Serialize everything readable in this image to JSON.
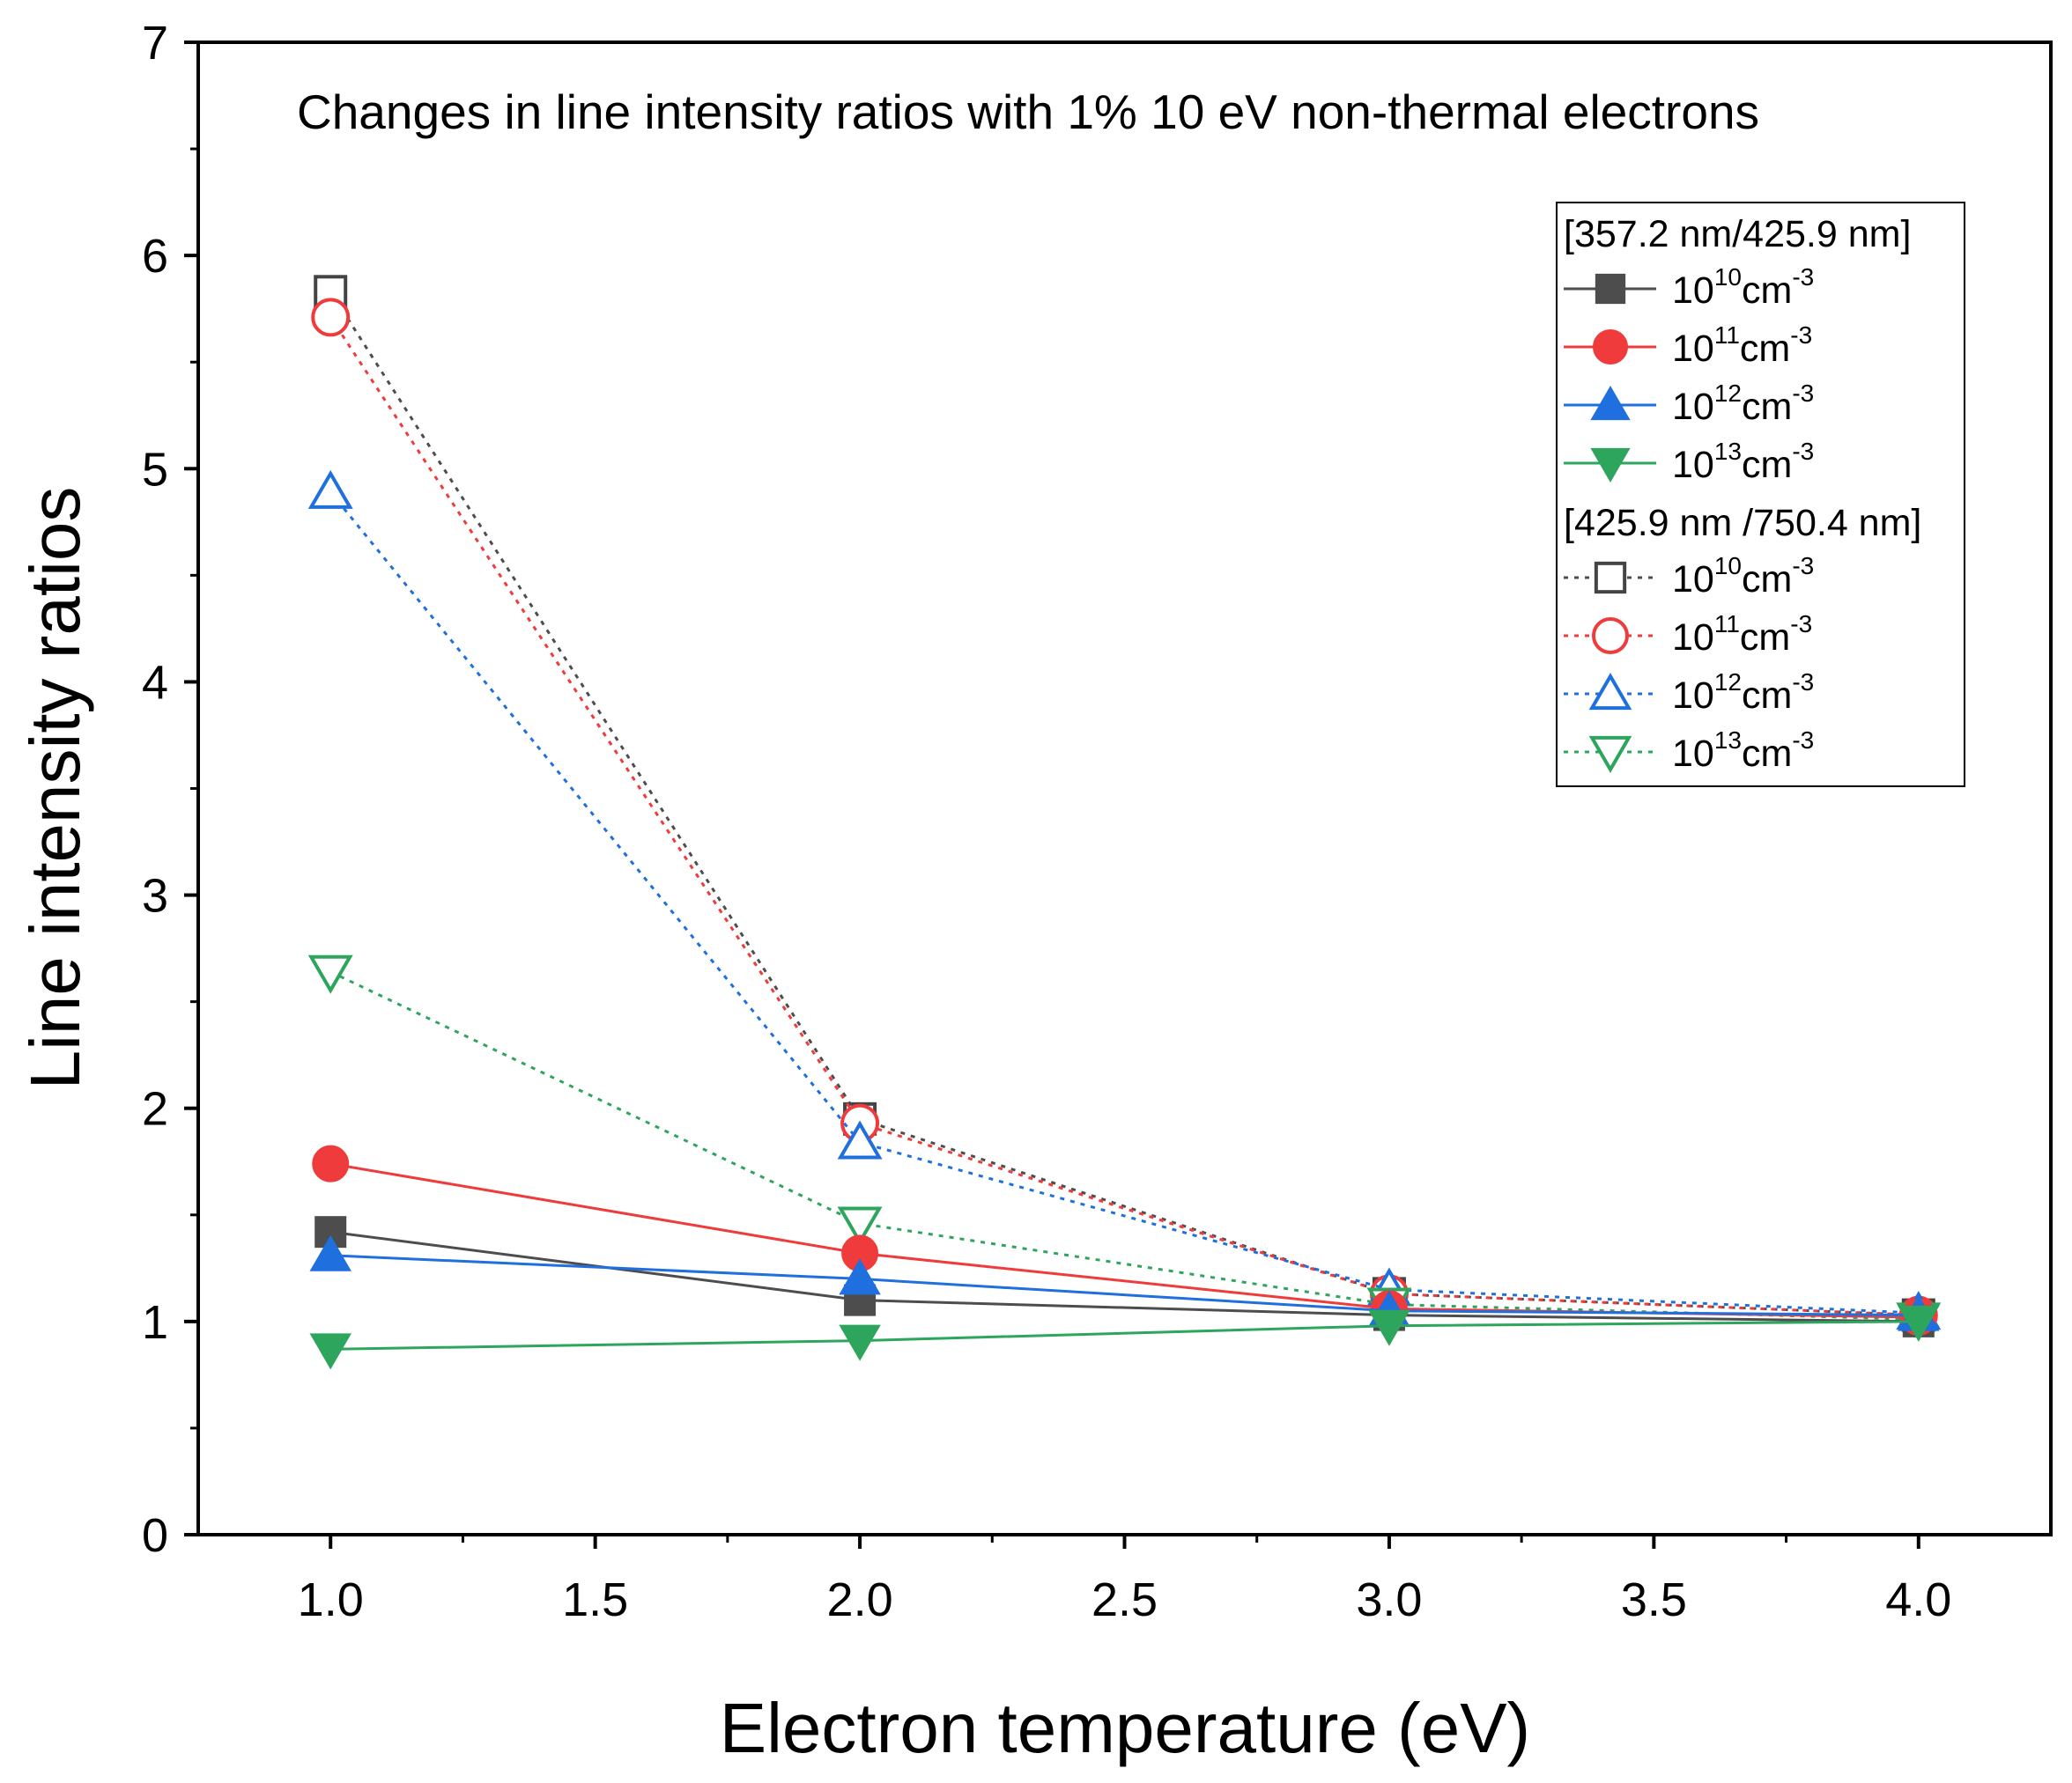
{
  "chart_data": {
    "type": "line",
    "title": "Changes in line intensity ratios with 1% 10 eV  non-thermal electrons",
    "xlabel": "Electron temperature (eV)",
    "ylabel": "Line intensity ratios",
    "xlim": [
      0.75,
      4.25
    ],
    "ylim": [
      0,
      7
    ],
    "xticks": [
      "1.0",
      "1.5",
      "2.0",
      "2.5",
      "3.0",
      "3.5",
      "4.0"
    ],
    "yticks": [
      "0",
      "1",
      "2",
      "3",
      "4",
      "5",
      "6",
      "7"
    ],
    "x": [
      1.0,
      2.0,
      3.0,
      4.0
    ],
    "legend_position": "top-right",
    "groups": [
      {
        "title": "[357.2 nm/425.9 nm]"
      },
      {
        "title": "[425.9 nm /750.4 nm]"
      }
    ],
    "series": [
      {
        "name": "10",
        "sup": "10",
        "unit": "cm",
        "unit_sup": "-3",
        "group": 0,
        "color": "#4d4d4d",
        "marker": "square",
        "filled": true,
        "dash": "solid",
        "values": [
          1.42,
          1.1,
          1.03,
          1.0
        ]
      },
      {
        "name": "10",
        "sup": "11",
        "unit": "cm",
        "unit_sup": "-3",
        "group": 0,
        "color": "#ef3b3b",
        "marker": "circle",
        "filled": true,
        "dash": "solid",
        "values": [
          1.74,
          1.32,
          1.06,
          1.02
        ]
      },
      {
        "name": "10",
        "sup": "12",
        "unit": "cm",
        "unit_sup": "-3",
        "group": 0,
        "color": "#1f6fde",
        "marker": "triangle-up",
        "filled": true,
        "dash": "solid",
        "values": [
          1.31,
          1.2,
          1.05,
          1.03
        ]
      },
      {
        "name": "10",
        "sup": "13",
        "unit": "cm",
        "unit_sup": "-3",
        "group": 0,
        "color": "#2ea55c",
        "marker": "triangle-down",
        "filled": true,
        "dash": "solid",
        "values": [
          0.87,
          0.91,
          0.98,
          1.0
        ]
      },
      {
        "name": "10",
        "sup": "10",
        "unit": "cm",
        "unit_sup": "-3",
        "group": 1,
        "color": "#4d4d4d",
        "marker": "square",
        "filled": false,
        "dash": "dot",
        "values": [
          5.83,
          1.95,
          1.13,
          1.03
        ]
      },
      {
        "name": "10",
        "sup": "11",
        "unit": "cm",
        "unit_sup": "-3",
        "group": 1,
        "color": "#ef3b3b",
        "marker": "circle",
        "filled": false,
        "dash": "dot",
        "values": [
          5.71,
          1.93,
          1.13,
          1.03
        ]
      },
      {
        "name": "10",
        "sup": "12",
        "unit": "cm",
        "unit_sup": "-3",
        "group": 1,
        "color": "#1f6fde",
        "marker": "triangle-up",
        "filled": false,
        "dash": "dot",
        "values": [
          4.89,
          1.84,
          1.15,
          1.04
        ]
      },
      {
        "name": "10",
        "sup": "13",
        "unit": "cm",
        "unit_sup": "-3",
        "group": 1,
        "color": "#2ea55c",
        "marker": "triangle-down",
        "filled": false,
        "dash": "dot",
        "values": [
          2.64,
          1.46,
          1.08,
          1.01
        ]
      }
    ]
  }
}
